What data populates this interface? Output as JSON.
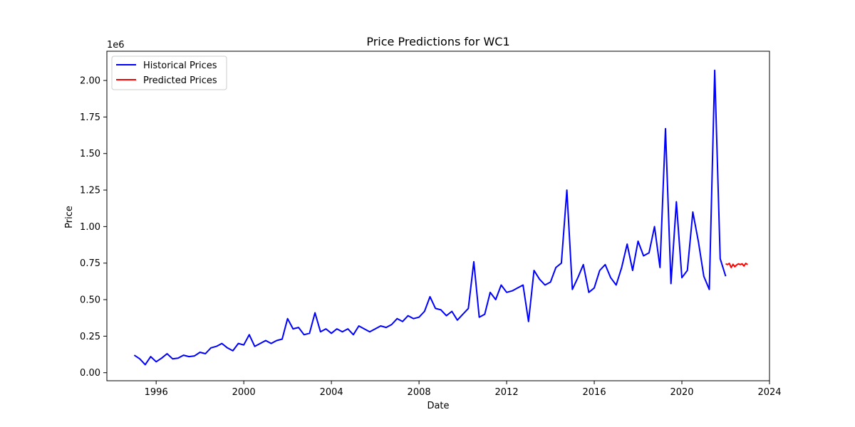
{
  "chart_data": {
    "type": "line",
    "title": "Price Predictions for WC1",
    "xlabel": "Date",
    "ylabel": "Price",
    "y_offset_label": "1e6",
    "xlim": [
      1993.75,
      2024.0
    ],
    "ylim": [
      -0.055,
      2.2
    ],
    "y_scale": 1000000,
    "grid": false,
    "legend_position": "top-left",
    "x_ticks": [
      1996,
      2000,
      2004,
      2008,
      2012,
      2016,
      2020,
      2024
    ],
    "x_tick_labels": [
      "1996",
      "2000",
      "2004",
      "2008",
      "2012",
      "2016",
      "2020",
      "2024"
    ],
    "y_ticks": [
      0.0,
      0.25,
      0.5,
      0.75,
      1.0,
      1.25,
      1.5,
      1.75,
      2.0
    ],
    "y_tick_labels": [
      "0.00",
      "0.25",
      "0.50",
      "0.75",
      "1.00",
      "1.25",
      "1.50",
      "1.75",
      "2.00"
    ],
    "series": [
      {
        "name": "Historical Prices",
        "color": "#0000ff",
        "x": [
          1995.0,
          1995.25,
          1995.5,
          1995.75,
          1996.0,
          1996.25,
          1996.5,
          1996.75,
          1997.0,
          1997.25,
          1997.5,
          1997.75,
          1998.0,
          1998.25,
          1998.5,
          1998.75,
          1999.0,
          1999.25,
          1999.5,
          1999.75,
          2000.0,
          2000.25,
          2000.5,
          2000.75,
          2001.0,
          2001.25,
          2001.5,
          2001.75,
          2002.0,
          2002.25,
          2002.5,
          2002.75,
          2003.0,
          2003.25,
          2003.5,
          2003.75,
          2004.0,
          2004.25,
          2004.5,
          2004.75,
          2005.0,
          2005.25,
          2005.5,
          2005.75,
          2006.0,
          2006.25,
          2006.5,
          2006.75,
          2007.0,
          2007.25,
          2007.5,
          2007.75,
          2008.0,
          2008.25,
          2008.5,
          2008.75,
          2009.0,
          2009.25,
          2009.5,
          2009.75,
          2010.0,
          2010.25,
          2010.5,
          2010.75,
          2011.0,
          2011.25,
          2011.5,
          2011.75,
          2012.0,
          2012.25,
          2012.5,
          2012.75,
          2013.0,
          2013.25,
          2013.5,
          2013.75,
          2014.0,
          2014.25,
          2014.5,
          2014.75,
          2015.0,
          2015.25,
          2015.5,
          2015.75,
          2016.0,
          2016.25,
          2016.5,
          2016.75,
          2017.0,
          2017.25,
          2017.5,
          2017.75,
          2018.0,
          2018.25,
          2018.5,
          2018.75,
          2019.0,
          2019.25,
          2019.5,
          2019.75,
          2020.0,
          2020.25,
          2020.5,
          2020.75,
          2021.0,
          2021.25,
          2021.5,
          2021.75,
          2022.0
        ],
        "values": [
          0.12,
          0.095,
          0.055,
          0.11,
          0.075,
          0.1,
          0.13,
          0.095,
          0.1,
          0.12,
          0.11,
          0.115,
          0.14,
          0.13,
          0.17,
          0.18,
          0.2,
          0.17,
          0.15,
          0.2,
          0.19,
          0.26,
          0.18,
          0.2,
          0.22,
          0.2,
          0.22,
          0.23,
          0.37,
          0.3,
          0.31,
          0.26,
          0.27,
          0.41,
          0.28,
          0.3,
          0.27,
          0.3,
          0.28,
          0.3,
          0.26,
          0.32,
          0.3,
          0.28,
          0.3,
          0.32,
          0.31,
          0.33,
          0.37,
          0.35,
          0.39,
          0.37,
          0.38,
          0.42,
          0.52,
          0.44,
          0.43,
          0.39,
          0.42,
          0.36,
          0.4,
          0.44,
          0.76,
          0.38,
          0.4,
          0.55,
          0.5,
          0.6,
          0.55,
          0.56,
          0.58,
          0.6,
          0.35,
          0.7,
          0.64,
          0.6,
          0.62,
          0.72,
          0.75,
          1.25,
          0.57,
          0.65,
          0.74,
          0.55,
          0.58,
          0.7,
          0.74,
          0.65,
          0.6,
          0.72,
          0.88,
          0.7,
          0.9,
          0.8,
          0.82,
          1.0,
          0.72,
          1.67,
          0.61,
          1.17,
          0.65,
          0.7,
          1.1,
          0.9,
          0.66,
          0.57,
          2.07,
          0.78,
          0.66
        ]
      },
      {
        "name": "Predicted Prices",
        "color": "#ff0000",
        "x": [
          2022.0,
          2022.083,
          2022.167,
          2022.25,
          2022.333,
          2022.417,
          2022.5,
          2022.583,
          2022.667,
          2022.75,
          2022.833,
          2022.917,
          2023.0
        ],
        "values": [
          0.745,
          0.74,
          0.748,
          0.72,
          0.742,
          0.725,
          0.738,
          0.745,
          0.74,
          0.745,
          0.73,
          0.748,
          0.74
        ]
      }
    ]
  }
}
